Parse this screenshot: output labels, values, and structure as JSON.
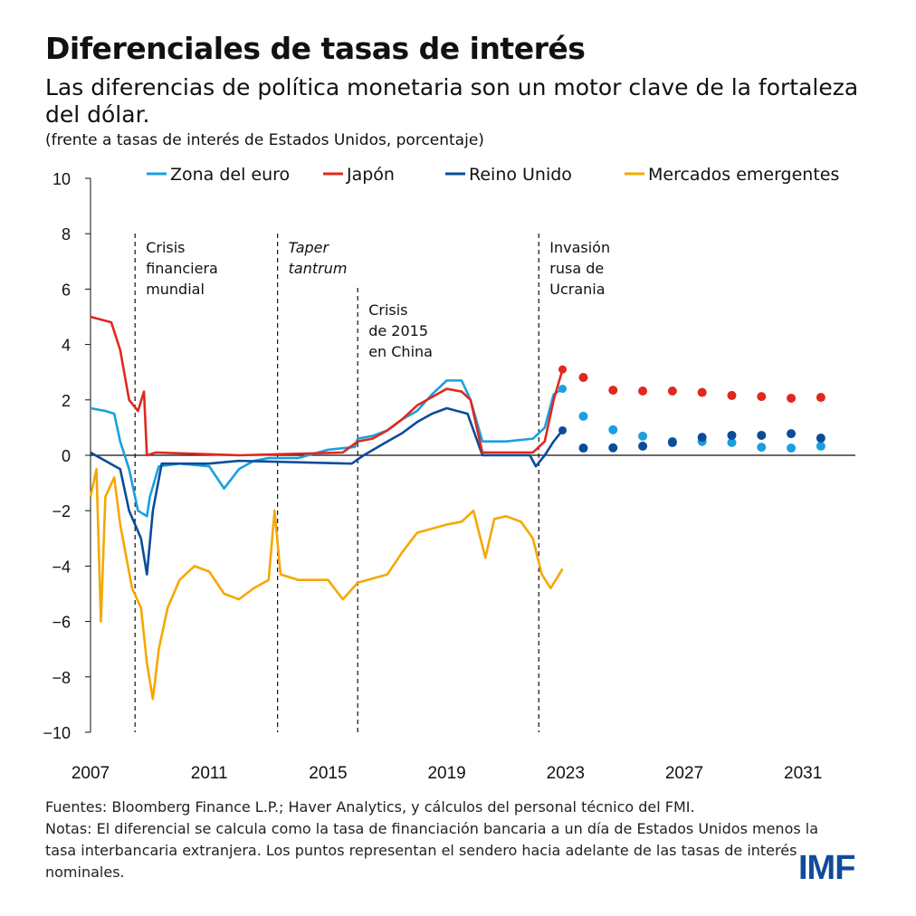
{
  "title": "Diferenciales de tasas de interés",
  "subtitle": "Las diferencias de política monetaria son un motor clave de la fortaleza del dólar.",
  "unit": "(frente a tasas de interés de Estados Unidos, porcentaje)",
  "notes": {
    "sources": "Fuentes: Bloomberg Finance L.P.; Haver Analytics, y cálculos del personal técnico del FMI.",
    "notes": "Notas: El diferencial se calcula como la tasa de financiación bancaria a un día de Estados Unidos menos la tasa interbancaria extranjera. Los puntos representan el sendero hacia adelante de las tasas de interés nominales."
  },
  "logo": "IMF",
  "chart_data": {
    "type": "line",
    "xlim": [
      2007,
      2032.7
    ],
    "ylim": [
      -10,
      10
    ],
    "yticks": [
      10,
      8,
      6,
      4,
      2,
      0,
      -2,
      -4,
      -6,
      -8,
      -10
    ],
    "xticks": [
      2007,
      2011,
      2015,
      2019,
      2023,
      2027,
      2031
    ],
    "legend_placement": "top",
    "grid": false,
    "series": [
      {
        "name": "Zona del euro",
        "color": "#1a9fe0",
        "x": [
          2007,
          2007.5,
          2007.8,
          2008,
          2008.3,
          2008.6,
          2008.9,
          2009,
          2009.3,
          2010,
          2011,
          2011.5,
          2012,
          2012.5,
          2013,
          2014,
          2015,
          2015.9,
          2016,
          2016.5,
          2017,
          2017.5,
          2018,
          2018.5,
          2019,
          2019.5,
          2019.8,
          2020.2,
          2021,
          2021.9,
          2022.3,
          2022.6,
          2022.9
        ],
        "y": [
          1.7,
          1.6,
          1.5,
          0.5,
          -0.5,
          -2.0,
          -2.2,
          -1.5,
          -0.4,
          -0.3,
          -0.4,
          -1.2,
          -0.5,
          -0.2,
          -0.1,
          -0.1,
          0.2,
          0.3,
          0.6,
          0.7,
          0.9,
          1.3,
          1.6,
          2.2,
          2.7,
          2.7,
          2.0,
          0.5,
          0.5,
          0.6,
          1.0,
          2.2,
          2.4
        ],
        "projection": {
          "x": [
            2023.6,
            2024.6,
            2025.6,
            2026.6,
            2027.6,
            2028.6,
            2029.6,
            2030.6,
            2031.6
          ],
          "y": [
            1.41,
            0.92,
            0.69,
            0.5,
            0.5,
            0.46,
            0.29,
            0.26,
            0.33
          ]
        }
      },
      {
        "name": "Japón",
        "color": "#e0281e",
        "x": [
          2007,
          2007.7,
          2008,
          2008.3,
          2008.6,
          2008.8,
          2008.9,
          2009.2,
          2012,
          2015.5,
          2016,
          2016.5,
          2017,
          2017.5,
          2018,
          2018.5,
          2019,
          2019.5,
          2019.8,
          2020.2,
          2021.9,
          2022.3,
          2022.6,
          2022.9
        ],
        "y": [
          5.0,
          4.8,
          3.8,
          2.0,
          1.6,
          2.3,
          0.0,
          0.1,
          0.0,
          0.1,
          0.5,
          0.6,
          0.9,
          1.3,
          1.8,
          2.1,
          2.4,
          2.3,
          2.0,
          0.1,
          0.1,
          0.5,
          2.0,
          3.1
        ],
        "projection": {
          "x": [
            2023.6,
            2024.6,
            2025.6,
            2026.6,
            2027.6,
            2028.6,
            2029.6,
            2030.6,
            2031.6
          ],
          "y": [
            2.81,
            2.35,
            2.32,
            2.32,
            2.27,
            2.16,
            2.12,
            2.06,
            2.09
          ]
        }
      },
      {
        "name": "Reino Unido",
        "color": "#0a4c98",
        "x": [
          2007,
          2008,
          2008.3,
          2008.7,
          2008.9,
          2009.1,
          2009.4,
          2011,
          2012,
          2015.8,
          2016.2,
          2017,
          2017.5,
          2018,
          2018.5,
          2019,
          2019.7,
          2020.2,
          2021.8,
          2022,
          2022.3,
          2022.6,
          2022.9
        ],
        "y": [
          0.1,
          -0.5,
          -2.0,
          -3.0,
          -4.3,
          -2.0,
          -0.3,
          -0.3,
          -0.2,
          -0.3,
          0.0,
          0.5,
          0.8,
          1.2,
          1.5,
          1.7,
          1.5,
          0.0,
          0.0,
          -0.4,
          0.0,
          0.5,
          0.9
        ],
        "projection": {
          "x": [
            2023.6,
            2024.6,
            2025.6,
            2026.6,
            2027.6,
            2028.6,
            2029.6,
            2030.6,
            2031.6
          ],
          "y": [
            0.26,
            0.27,
            0.33,
            0.46,
            0.65,
            0.72,
            0.72,
            0.78,
            0.62
          ]
        }
      },
      {
        "name": "Mercados emergentes",
        "color": "#f5a800",
        "x": [
          2007,
          2007.2,
          2007.35,
          2007.5,
          2007.8,
          2008,
          2008.4,
          2008.7,
          2008.9,
          2009.1,
          2009.3,
          2009.6,
          2010,
          2010.5,
          2011,
          2011.5,
          2012,
          2012.5,
          2013,
          2013.2,
          2013.4,
          2014,
          2015,
          2015.5,
          2016,
          2017,
          2017.5,
          2018,
          2019,
          2019.5,
          2019.9,
          2020.3,
          2020.6,
          2021,
          2021.5,
          2021.9,
          2022.2,
          2022.5,
          2022.9
        ],
        "y": [
          -1.5,
          -0.5,
          -6,
          -1.5,
          -0.8,
          -2.5,
          -4.8,
          -5.5,
          -7.5,
          -8.8,
          -7.0,
          -5.5,
          -4.5,
          -4.0,
          -4.2,
          -5.0,
          -5.2,
          -4.8,
          -4.5,
          -2.0,
          -4.3,
          -4.5,
          -4.5,
          -5.2,
          -4.6,
          -4.3,
          -3.5,
          -2.8,
          -2.5,
          -2.4,
          -2.0,
          -3.7,
          -2.3,
          -2.2,
          -2.4,
          -3.0,
          -4.3,
          -4.8,
          -4.1
        ]
      }
    ],
    "annotations": [
      {
        "x": 2008.5,
        "text": [
          "Crisis",
          "financiera",
          "mundial"
        ],
        "italic": false
      },
      {
        "x": 2013.3,
        "text": [
          "Taper",
          "tantrum"
        ],
        "italic": true
      },
      {
        "x": 2016.0,
        "text": [
          "Crisis",
          "de 2015",
          "en China"
        ],
        "italic": false
      },
      {
        "x": 2022.1,
        "text": [
          "Invasión",
          "rusa de",
          "Ucrania"
        ],
        "italic": false
      }
    ]
  }
}
